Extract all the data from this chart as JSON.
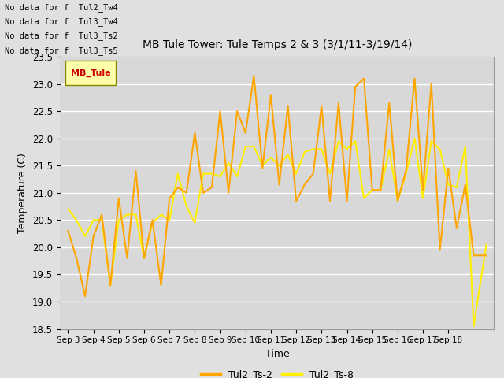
{
  "title": "MB Tule Tower: Tule Temps 2 & 3 (3/1/11-3/19/14)",
  "xlabel": "Time",
  "ylabel": "Temperature (C)",
  "ylim": [
    18.5,
    23.5
  ],
  "background_color": "#e0e0e0",
  "plot_bg_color": "#d8d8d8",
  "color_ts2": "#FFA500",
  "color_ts8": "#FFEE00",
  "legend_labels": [
    "Tul2_Ts-2",
    "Tul2_Ts-8"
  ],
  "no_data_texts": [
    "No data for f  Tul2_Tw4",
    "No data for f  Tul3_Tw4",
    "No data for f  Tul3_Ts2",
    "No data for f  Tul3_Ts5"
  ],
  "xtick_labels": [
    "Sep 3",
    "Sep 4",
    "Sep 5",
    "Sep 6",
    "Sep 7",
    "Sep 8",
    "Sep 9",
    "Sep 10",
    "Sep 11",
    "Sep 12",
    "Sep 13",
    "Sep 14",
    "Sep 15",
    "Sep 16",
    "Sep 17",
    "Sep 18"
  ],
  "ts2_x": [
    0,
    0.33,
    0.67,
    1,
    1.33,
    1.67,
    2,
    2.33,
    2.67,
    3,
    3.33,
    3.67,
    4,
    4.33,
    4.67,
    5,
    5.33,
    5.67,
    6,
    6.33,
    6.67,
    7,
    7.33,
    7.67,
    8,
    8.33,
    8.67,
    9,
    9.33,
    9.67,
    10,
    10.33,
    10.67,
    11,
    11.33,
    11.67,
    12,
    12.33,
    12.67,
    13,
    13.33,
    13.67,
    14,
    14.33,
    14.67,
    15,
    15.33,
    15.67,
    16,
    16.5
  ],
  "ts2_y": [
    20.3,
    19.8,
    19.1,
    20.2,
    20.6,
    19.3,
    20.9,
    19.8,
    21.4,
    19.8,
    20.5,
    19.3,
    20.9,
    21.1,
    21.0,
    22.1,
    21.0,
    21.1,
    22.5,
    21.0,
    22.5,
    22.1,
    23.15,
    21.45,
    22.8,
    21.15,
    22.6,
    20.85,
    21.15,
    21.35,
    22.6,
    20.85,
    22.65,
    20.85,
    22.95,
    23.1,
    21.05,
    21.05,
    22.65,
    20.85,
    21.4,
    23.1,
    21.05,
    23.0,
    19.95,
    21.45,
    20.35,
    21.15,
    19.85,
    19.85
  ],
  "ts8_x": [
    0,
    0.33,
    0.67,
    1,
    1.33,
    1.67,
    2,
    2.33,
    2.67,
    3,
    3.33,
    3.67,
    4,
    4.33,
    4.67,
    5,
    5.33,
    5.67,
    6,
    6.33,
    6.67,
    7,
    7.33,
    7.67,
    8,
    8.33,
    8.67,
    9,
    9.33,
    9.67,
    10,
    10.33,
    10.67,
    11,
    11.33,
    11.67,
    12,
    12.33,
    12.67,
    13,
    13.33,
    13.67,
    14,
    14.33,
    14.67,
    15,
    15.33,
    15.67,
    16,
    16.5
  ],
  "ts8_y": [
    20.7,
    20.5,
    20.2,
    20.5,
    20.5,
    19.3,
    20.5,
    20.6,
    20.6,
    19.8,
    20.45,
    20.6,
    20.5,
    21.35,
    20.75,
    20.45,
    21.35,
    21.35,
    21.3,
    21.55,
    21.3,
    21.85,
    21.85,
    21.5,
    21.65,
    21.5,
    21.7,
    21.35,
    21.75,
    21.8,
    21.8,
    21.35,
    21.95,
    21.8,
    21.95,
    20.9,
    21.05,
    21.05,
    21.8,
    20.85,
    21.35,
    22.0,
    20.9,
    21.95,
    21.8,
    21.15,
    21.1,
    21.85,
    18.55,
    20.05
  ],
  "yticks": [
    18.5,
    19.0,
    19.5,
    20.0,
    20.5,
    21.0,
    21.5,
    22.0,
    22.5,
    23.0,
    23.5
  ]
}
